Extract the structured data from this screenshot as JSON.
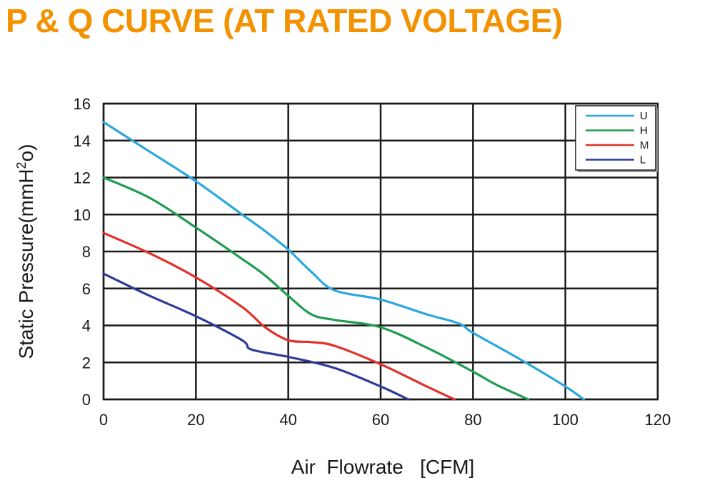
{
  "chart_data": {
    "type": "line",
    "title": "P & Q CURVE (AT RATED VOLTAGE)",
    "xlabel": "Air  Flowrate   [CFM]",
    "ylabel_main": "Static Pressure(mmH",
    "ylabel_sup": "2",
    "ylabel_end": "o)",
    "xlim": [
      0,
      120
    ],
    "ylim": [
      0,
      16
    ],
    "x_ticks": [
      "0",
      "20",
      "40",
      "60",
      "80",
      "100",
      "120"
    ],
    "y_ticks": [
      "0",
      "2",
      "4",
      "6",
      "8",
      "10",
      "12",
      "14",
      "16"
    ],
    "grid": true,
    "legend_position": "top-right",
    "series": [
      {
        "name": "U",
        "color": "#2aa7dc",
        "x": [
          0,
          10,
          20,
          30,
          35,
          40,
          45,
          50,
          60,
          70,
          77,
          80,
          90,
          100,
          104
        ],
        "y": [
          15.0,
          13.4,
          11.8,
          10.0,
          9.1,
          8.1,
          6.9,
          5.9,
          5.4,
          4.6,
          4.1,
          3.6,
          2.2,
          0.7,
          0.0
        ]
      },
      {
        "name": "H",
        "color": "#1f9c4f",
        "x": [
          0,
          10,
          20,
          30,
          35,
          40,
          45,
          50,
          60,
          70,
          80,
          85,
          92
        ],
        "y": [
          12.0,
          10.9,
          9.3,
          7.6,
          6.7,
          5.6,
          4.6,
          4.3,
          3.9,
          2.8,
          1.5,
          0.8,
          0.0
        ]
      },
      {
        "name": "M",
        "color": "#e3302b",
        "x": [
          0,
          10,
          20,
          30,
          35,
          40,
          45,
          50,
          60,
          70,
          76
        ],
        "y": [
          9.0,
          7.9,
          6.6,
          5.0,
          3.9,
          3.2,
          3.1,
          2.9,
          1.9,
          0.7,
          0.0
        ]
      },
      {
        "name": "L",
        "color": "#2e3b97",
        "x": [
          0,
          10,
          20,
          30,
          32,
          40,
          50,
          60,
          66
        ],
        "y": [
          6.8,
          5.6,
          4.5,
          3.2,
          2.7,
          2.3,
          1.7,
          0.7,
          0.0
        ]
      }
    ]
  }
}
